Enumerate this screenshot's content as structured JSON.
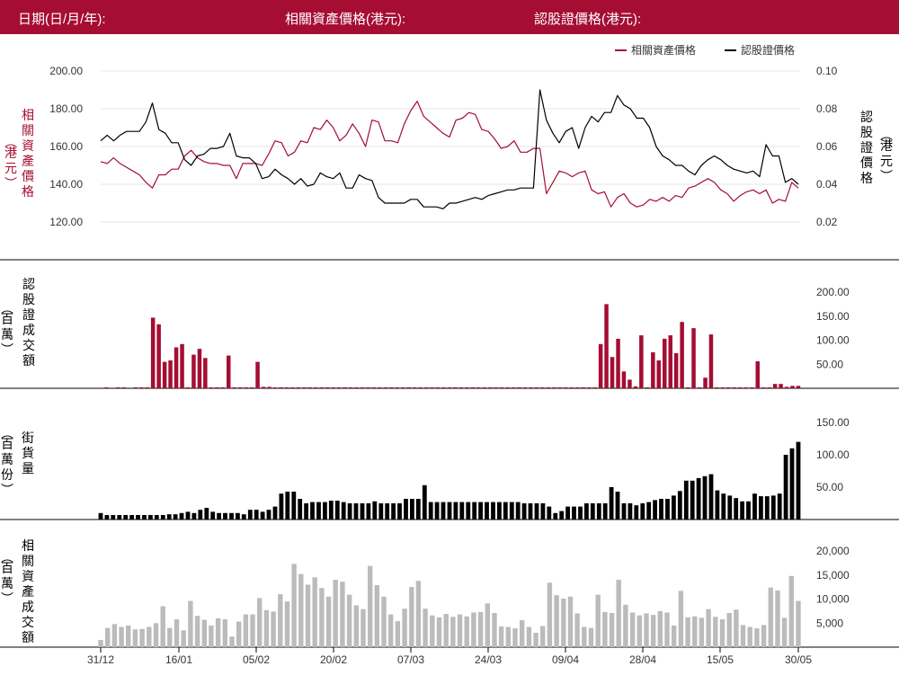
{
  "header": {
    "date_label": "日期(日/月/年):",
    "underlying_label": "相關資產價格(港元):",
    "warrant_label": "認股證價格(港元):"
  },
  "colors": {
    "header_bg": "#a50d33",
    "underlying": "#a50d33",
    "warrant": "#000000",
    "turnover": "#a50d33",
    "outstanding": "#000000",
    "underlying_turnover": "#bbbbbb"
  },
  "chart_data": [
    {
      "type": "line",
      "panel": "price",
      "legend": [
        "相關資產價格",
        "認股證價格"
      ],
      "legend_position": "top-right",
      "ylabel_left": "相關資產價格",
      "ylabel_left_unit": "港元",
      "ylabel_right": "認股證價格",
      "ylabel_right_unit": "港元",
      "yticks_left": [
        "200.00",
        "180.00",
        "160.00",
        "140.00",
        "120.00"
      ],
      "yticks_right": [
        "0.10",
        "0.08",
        "0.06",
        "0.04",
        "0.02"
      ],
      "ylim_left": [
        110,
        210
      ],
      "ylim_right": [
        0.01,
        0.11
      ],
      "grid": true,
      "series": [
        {
          "name": "相關資產價格",
          "axis": "left",
          "values": [
            152,
            151,
            154,
            151,
            149,
            147,
            145,
            141,
            138,
            145,
            145,
            148,
            148,
            155,
            158,
            154,
            152,
            151,
            151,
            150,
            150,
            143,
            151,
            151,
            151,
            150,
            156,
            163,
            162,
            155,
            157,
            163,
            162,
            170,
            169,
            174,
            170,
            163,
            166,
            172,
            167,
            160,
            174,
            173,
            163,
            163,
            162,
            172,
            179,
            184,
            176,
            173,
            170,
            167,
            165,
            174,
            175,
            178,
            177,
            169,
            168,
            164,
            159,
            160,
            163,
            157,
            157,
            159,
            159,
            135,
            141,
            147,
            146,
            144,
            146,
            147,
            137,
            135,
            136,
            128,
            133,
            135,
            130,
            128,
            129,
            132,
            131,
            133,
            131,
            134,
            133,
            138,
            139,
            141,
            143,
            141,
            137,
            135,
            131,
            134,
            136,
            137,
            135,
            137,
            130,
            132,
            131,
            141,
            138
          ]
        },
        {
          "name": "認股證價格",
          "axis": "right",
          "values": [
            0.063,
            0.066,
            0.063,
            0.066,
            0.068,
            0.068,
            0.068,
            0.073,
            0.083,
            0.069,
            0.067,
            0.062,
            0.062,
            0.053,
            0.05,
            0.055,
            0.056,
            0.059,
            0.059,
            0.06,
            0.067,
            0.055,
            0.054,
            0.054,
            0.051,
            0.043,
            0.044,
            0.048,
            0.045,
            0.043,
            0.04,
            0.043,
            0.039,
            0.04,
            0.046,
            0.044,
            0.043,
            0.046,
            0.038,
            0.038,
            0.045,
            0.043,
            0.042,
            0.033,
            0.03,
            0.03,
            0.03,
            0.03,
            0.032,
            0.032,
            0.028,
            0.028,
            0.028,
            0.027,
            0.03,
            0.03,
            0.031,
            0.032,
            0.033,
            0.032,
            0.034,
            0.035,
            0.036,
            0.037,
            0.037,
            0.038,
            0.038,
            0.038,
            0.09,
            0.074,
            0.067,
            0.062,
            0.068,
            0.07,
            0.059,
            0.07,
            0.076,
            0.073,
            0.078,
            0.078,
            0.087,
            0.082,
            0.08,
            0.075,
            0.075,
            0.07,
            0.06,
            0.055,
            0.053,
            0.05,
            0.05,
            0.047,
            0.045,
            0.05,
            0.053,
            0.055,
            0.053,
            0.05,
            0.048,
            0.047,
            0.046,
            0.047,
            0.044,
            0.061,
            0.055,
            0.055,
            0.041,
            0.043,
            0.04
          ]
        }
      ]
    },
    {
      "type": "bar",
      "panel": "warrant-turnover",
      "ylabel": "認股證成交額",
      "ylabel_unit": "百萬",
      "yticks": [
        "200.00",
        "150.00",
        "100.00",
        "50.00"
      ],
      "ylim": [
        0,
        220
      ],
      "values": [
        0,
        2,
        0,
        2,
        2,
        0,
        2,
        2,
        2,
        147,
        133,
        55,
        58,
        85,
        92,
        2,
        70,
        82,
        63,
        2,
        2,
        2,
        68,
        2,
        2,
        2,
        2,
        55,
        3,
        3,
        2,
        2,
        2,
        2,
        2,
        2,
        2,
        2,
        2,
        2,
        2,
        2,
        2,
        2,
        2,
        2,
        2,
        2,
        2,
        2,
        2,
        2,
        2,
        2,
        2,
        2,
        2,
        2,
        2,
        2,
        2,
        2,
        2,
        2,
        2,
        2,
        2,
        2,
        2,
        2,
        2,
        2,
        2,
        2,
        2,
        2,
        2,
        2,
        2,
        2,
        2,
        2,
        2,
        2,
        2,
        2,
        92,
        175,
        65,
        103,
        35,
        18,
        4,
        110,
        2,
        75,
        58,
        103,
        110,
        73,
        138,
        2,
        125,
        2,
        22,
        112,
        2,
        2,
        2,
        2,
        2,
        2,
        2,
        56,
        2,
        2,
        9,
        9,
        3,
        5,
        5
      ]
    },
    {
      "type": "bar",
      "panel": "outstanding",
      "ylabel": "街貨量",
      "ylabel_unit": "百萬份",
      "yticks": [
        "150.00",
        "100.00",
        "50.00"
      ],
      "ylim": [
        0,
        165
      ],
      "values": [
        10,
        7,
        7,
        7,
        7,
        7,
        7,
        7,
        7,
        7,
        7,
        8,
        8,
        10,
        12,
        10,
        15,
        18,
        12,
        10,
        10,
        10,
        10,
        8,
        15,
        15,
        12,
        15,
        20,
        40,
        43,
        43,
        32,
        25,
        27,
        27,
        27,
        29,
        29,
        27,
        25,
        25,
        25,
        25,
        28,
        25,
        25,
        25,
        25,
        32,
        32,
        32,
        53,
        27,
        27,
        27,
        27,
        27,
        27,
        27,
        27,
        27,
        27,
        27,
        27,
        27,
        27,
        27,
        25,
        25,
        25,
        25,
        20,
        10,
        13,
        20,
        20,
        20,
        25,
        25,
        25,
        25,
        50,
        43,
        25,
        25,
        22,
        25,
        27,
        30,
        32,
        32,
        37,
        44,
        60,
        60,
        64,
        67,
        70,
        45,
        40,
        37,
        33,
        28,
        28,
        40,
        36,
        36,
        37,
        40,
        100,
        110,
        120
      ]
    },
    {
      "type": "bar",
      "panel": "underlying-turnover",
      "ylabel": "相關資產成交額",
      "ylabel_unit": "百萬",
      "yticks": [
        "20,000",
        "15,000",
        "10,000",
        "5,000"
      ],
      "ylim": [
        0,
        23000
      ],
      "xticks": [
        "31/12",
        "16/01",
        "05/02",
        "20/02",
        "07/03",
        "24/03",
        "09/04",
        "28/04",
        "15/05",
        "30/05"
      ],
      "values": [
        1500,
        4000,
        4800,
        4200,
        4500,
        3700,
        3800,
        4200,
        5000,
        8500,
        4000,
        5800,
        3500,
        9600,
        6500,
        5700,
        4500,
        6000,
        5800,
        2200,
        5300,
        6800,
        6800,
        10200,
        7700,
        7400,
        11000,
        9500,
        17300,
        15200,
        13000,
        14500,
        12300,
        10500,
        14000,
        13600,
        10900,
        8700,
        7900,
        16900,
        12900,
        10500,
        6800,
        5400,
        8000,
        12500,
        13800,
        8000,
        6600,
        6200,
        6900,
        6300,
        6800,
        6400,
        7200,
        7300,
        9100,
        7100,
        4300,
        4200,
        3900,
        5600,
        4200,
        3000,
        4400,
        13400,
        10800,
        10100,
        10500,
        7000,
        4200,
        4000,
        10900,
        7300,
        7100,
        14000,
        8800,
        7200,
        6600,
        7000,
        6700,
        7500,
        7200,
        4500,
        11700,
        6200,
        6400,
        6100,
        7900,
        6300,
        5800,
        7100,
        7800,
        4600,
        4200,
        3900,
        4600,
        12400,
        11800,
        6100,
        14800,
        9600
      ]
    }
  ]
}
